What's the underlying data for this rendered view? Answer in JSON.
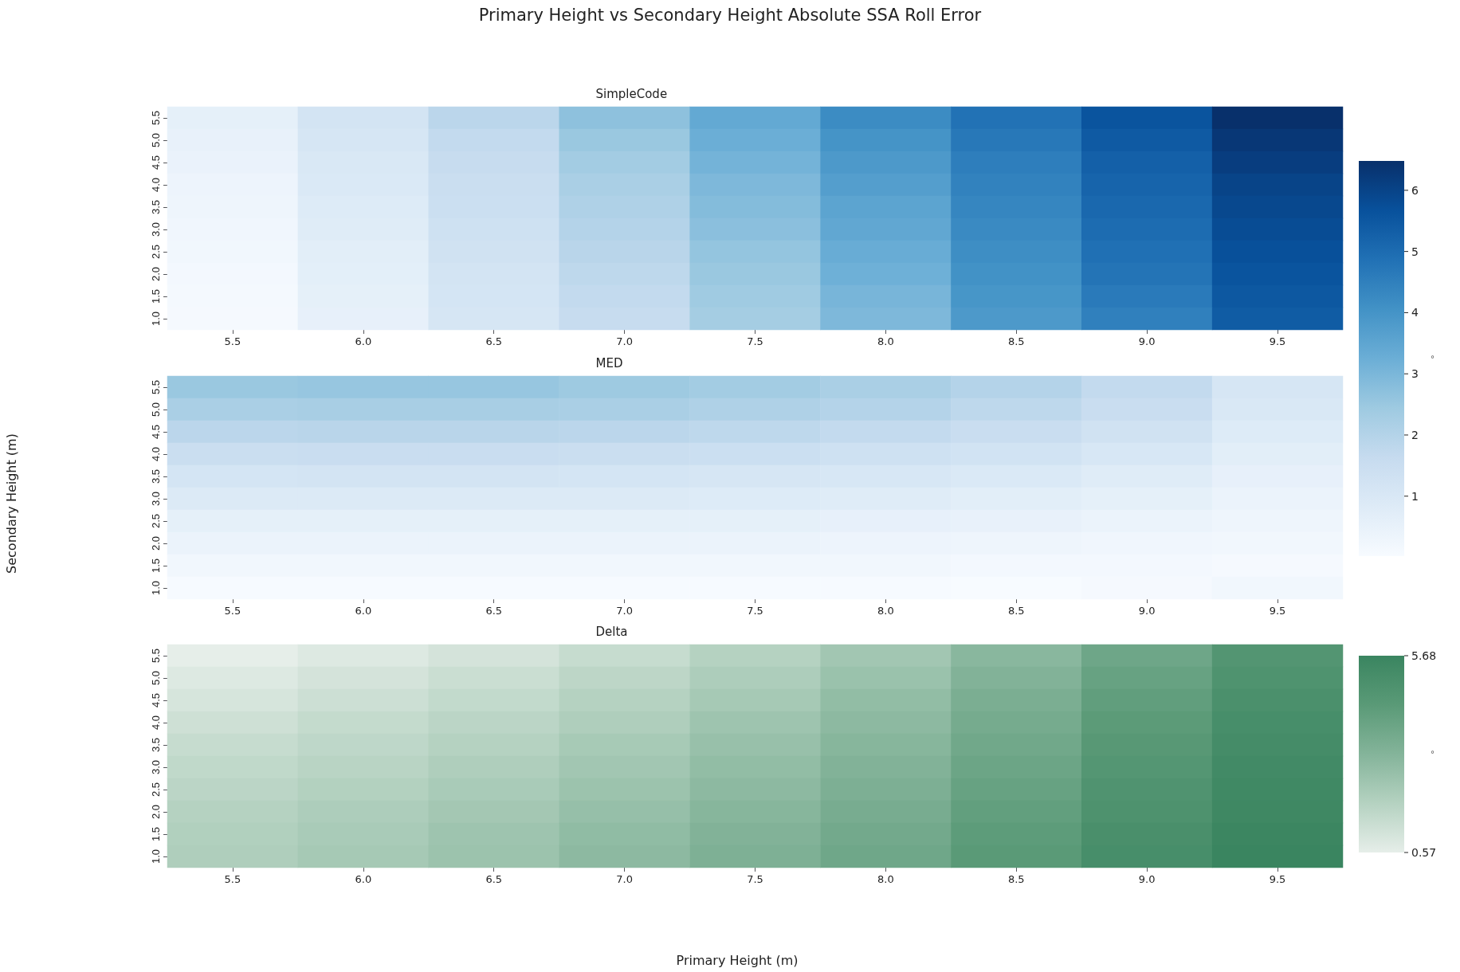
{
  "chart_data": [
    {
      "type": "heatmap",
      "title": "SimpleCode",
      "annotations": [
        "Primary Height vs Secondary Height Absolute SSA Roll Error"
      ],
      "categories": [
        "5.5",
        "6.0",
        "6.5",
        "7.0",
        "7.5",
        "8.0",
        "8.5",
        "9.0",
        "9.5"
      ],
      "y_categories": [
        "5.5",
        "5.0",
        "4.5",
        "4.0",
        "3.5",
        "3.0",
        "2.5",
        "2.0",
        "1.5",
        "1.0"
      ],
      "cells": [
        [
          0.6,
          1.2,
          1.85,
          2.7,
          3.4,
          4.2,
          4.85,
          5.6,
          6.48
        ],
        [
          0.5,
          1.1,
          1.7,
          2.5,
          3.25,
          4.0,
          4.7,
          5.45,
          6.3
        ],
        [
          0.45,
          1.0,
          1.6,
          2.35,
          3.1,
          3.85,
          4.55,
          5.3,
          6.15
        ],
        [
          0.35,
          0.95,
          1.5,
          2.2,
          2.95,
          3.7,
          4.45,
          5.2,
          6.0
        ],
        [
          0.3,
          0.85,
          1.45,
          2.1,
          2.85,
          3.55,
          4.35,
          5.1,
          5.9
        ],
        [
          0.25,
          0.8,
          1.35,
          2.0,
          2.75,
          3.45,
          4.25,
          5.0,
          5.8
        ],
        [
          0.2,
          0.7,
          1.3,
          1.9,
          2.6,
          3.3,
          4.15,
          4.9,
          5.7
        ],
        [
          0.15,
          0.65,
          1.2,
          1.8,
          2.5,
          3.2,
          4.05,
          4.8,
          5.6
        ],
        [
          0.12,
          0.6,
          1.15,
          1.7,
          2.4,
          3.05,
          3.95,
          4.65,
          5.5
        ],
        [
          0.1,
          0.55,
          1.1,
          1.6,
          2.3,
          2.95,
          3.85,
          4.5,
          5.4
        ]
      ],
      "clim": [
        0.02,
        6.48
      ],
      "cticks": [
        4,
        5,
        6
      ],
      "colors": [
        "#f7fbff",
        "#deebf7",
        "#c6dbef",
        "#9ecae1",
        "#6baed6",
        "#4292c6",
        "#2171b5",
        "#08519c",
        "#08306b"
      ]
    },
    {
      "type": "heatmap",
      "title": "MED",
      "ylabel": "Secondary Height (m)",
      "clabel": "°",
      "categories": [
        "5.5",
        "6.0",
        "6.5",
        "7.0",
        "7.5",
        "8.0",
        "8.5",
        "9.0",
        "9.5"
      ],
      "y_categories": [
        "5.5",
        "5.0",
        "4.5",
        "4.0",
        "3.5",
        "3.0",
        "2.5",
        "2.0",
        "1.5",
        "1.0"
      ],
      "cells": [
        [
          2.5,
          2.55,
          2.55,
          2.45,
          2.35,
          2.2,
          2.0,
          1.7,
          1.1
        ],
        [
          2.2,
          2.25,
          2.25,
          2.2,
          2.1,
          2.0,
          1.8,
          1.55,
          1.0
        ],
        [
          1.85,
          1.9,
          1.9,
          1.85,
          1.8,
          1.7,
          1.55,
          1.3,
          0.85
        ],
        [
          1.5,
          1.55,
          1.55,
          1.5,
          1.45,
          1.35,
          1.25,
          1.05,
          0.7
        ],
        [
          1.15,
          1.2,
          1.2,
          1.15,
          1.1,
          1.05,
          0.95,
          0.8,
          0.55
        ],
        [
          0.9,
          0.9,
          0.9,
          0.9,
          0.85,
          0.8,
          0.7,
          0.6,
          0.4
        ],
        [
          0.6,
          0.6,
          0.6,
          0.6,
          0.6,
          0.55,
          0.5,
          0.4,
          0.3
        ],
        [
          0.4,
          0.4,
          0.4,
          0.4,
          0.4,
          0.35,
          0.3,
          0.25,
          0.2
        ],
        [
          0.2,
          0.2,
          0.2,
          0.2,
          0.2,
          0.2,
          0.15,
          0.15,
          0.1
        ],
        [
          0.05,
          0.05,
          0.05,
          0.05,
          0.05,
          0.05,
          0.02,
          0.1,
          0.2
        ]
      ],
      "clim": [
        0.02,
        6.48
      ],
      "cticks": [
        1,
        2,
        3
      ],
      "colors": [
        "#f7fbff",
        "#deebf7",
        "#c6dbef",
        "#9ecae1",
        "#6baed6",
        "#4292c6",
        "#2171b5",
        "#08519c",
        "#08306b"
      ]
    },
    {
      "type": "heatmap",
      "title": "Delta",
      "xlabel": "Primary Height (m)",
      "clabel": "°",
      "categories": [
        "5.5",
        "6.0",
        "6.5",
        "7.0",
        "7.5",
        "8.0",
        "8.5",
        "9.0",
        "9.5"
      ],
      "y_categories": [
        "5.5",
        "5.0",
        "4.5",
        "4.0",
        "3.5",
        "3.0",
        "2.5",
        "2.0",
        "1.5",
        "1.0"
      ],
      "cells": [
        [
          0.57,
          0.8,
          1.05,
          1.4,
          1.85,
          2.35,
          3.0,
          3.8,
          4.7
        ],
        [
          0.8,
          1.05,
          1.3,
          1.65,
          2.05,
          2.55,
          3.2,
          4.0,
          4.85
        ],
        [
          1.0,
          1.25,
          1.5,
          1.85,
          2.25,
          2.75,
          3.4,
          4.2,
          5.0
        ],
        [
          1.2,
          1.45,
          1.7,
          2.0,
          2.45,
          2.9,
          3.55,
          4.35,
          5.15
        ],
        [
          1.4,
          1.6,
          1.85,
          2.2,
          2.6,
          3.05,
          3.7,
          4.5,
          5.25
        ],
        [
          1.55,
          1.75,
          2.0,
          2.35,
          2.75,
          3.2,
          3.85,
          4.65,
          5.35
        ],
        [
          1.7,
          1.9,
          2.15,
          2.5,
          2.9,
          3.35,
          4.0,
          4.8,
          5.45
        ],
        [
          1.85,
          2.05,
          2.3,
          2.65,
          3.05,
          3.5,
          4.15,
          4.9,
          5.5
        ],
        [
          1.95,
          2.15,
          2.45,
          2.8,
          3.2,
          3.65,
          4.3,
          5.05,
          5.6
        ],
        [
          2.0,
          2.25,
          2.5,
          2.9,
          3.3,
          3.75,
          4.4,
          5.15,
          5.68
        ]
      ],
      "clim": [
        0.57,
        5.68
      ],
      "cticks": [
        0.57,
        5.68
      ],
      "colors": [
        "#e6eee9",
        "#b5d2c1",
        "#84b49a",
        "#5a9a77",
        "#3a8560"
      ]
    }
  ]
}
